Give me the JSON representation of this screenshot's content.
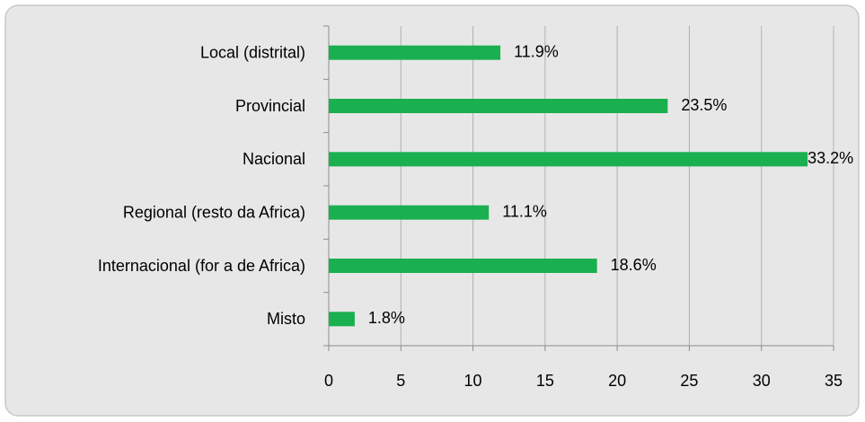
{
  "chart_data": {
    "type": "bar",
    "orientation": "horizontal",
    "categories": [
      "Local (distrital)",
      "Provincial",
      "Nacional",
      "Regional (resto da Africa)",
      "Internacional (for a de Africa)",
      "Misto"
    ],
    "values": [
      11.9,
      23.5,
      33.2,
      11.1,
      18.6,
      1.8
    ],
    "value_labels": [
      "11.9%",
      "23.5%",
      "33.2%",
      "11.1%",
      "18.6%",
      "1.8%"
    ],
    "color": "#1aaf4f",
    "xlim": [
      0,
      35
    ],
    "xticks": [
      0,
      5,
      10,
      15,
      20,
      25,
      30,
      35
    ],
    "grid": true
  }
}
